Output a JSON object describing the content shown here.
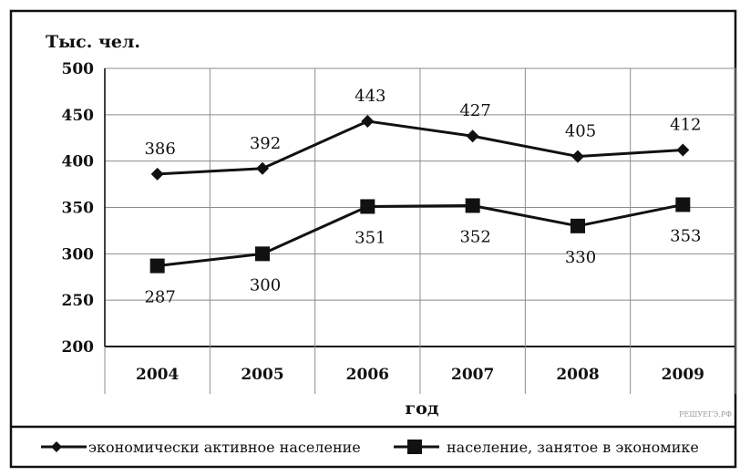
{
  "chart_data": {
    "type": "line",
    "ylabel": "Тыс. чел.",
    "xlabel": "год",
    "categories": [
      "2004",
      "2005",
      "2006",
      "2007",
      "2008",
      "2009"
    ],
    "ylim": [
      200,
      500
    ],
    "yticks": [
      200,
      250,
      300,
      350,
      400,
      450,
      500
    ],
    "grid": true,
    "legend_position": "bottom",
    "series": [
      {
        "name": "экономически активное население",
        "marker": "diamond",
        "values": [
          386,
          392,
          443,
          427,
          405,
          412
        ],
        "labels": [
          "386",
          "392",
          "443",
          "427",
          "405",
          "412"
        ]
      },
      {
        "name": "население, занятое в экономике",
        "marker": "square",
        "values": [
          287,
          300,
          351,
          352,
          330,
          353
        ],
        "labels": [
          "287",
          "300",
          "351",
          "352",
          "330",
          "353"
        ]
      }
    ]
  },
  "colors": {
    "ink": "#111111",
    "grid": "#8c8c8c",
    "background": "#ffffff"
  },
  "watermark": "РЕШУЕГЭ.РФ"
}
